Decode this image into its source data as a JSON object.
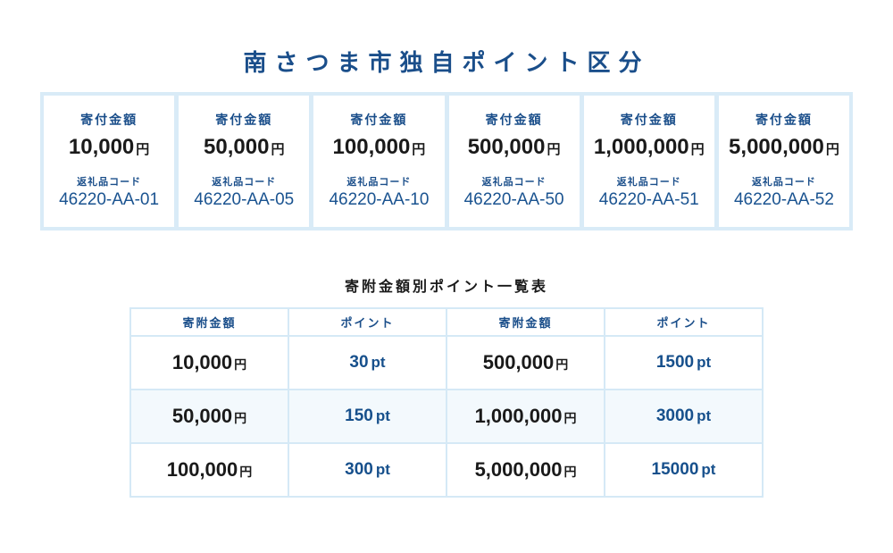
{
  "title": "南さつま市独自ポイント区分",
  "colors": {
    "accent_blue": "#1a4e8a",
    "code_blue": "#1a5390",
    "text_black": "#1a1a1a",
    "card_grid_blue": "#d9ebf7",
    "table_border_blue": "#d5e9f6",
    "row_alt_tint": "#f3f9fd"
  },
  "donation_cards": [
    {
      "amount_label": "寄付金額",
      "amount": "10,000",
      "currency": "円",
      "code_label": "返礼品コード",
      "code": "46220-AA-01"
    },
    {
      "amount_label": "寄付金額",
      "amount": "50,000",
      "currency": "円",
      "code_label": "返礼品コード",
      "code": "46220-AA-05"
    },
    {
      "amount_label": "寄付金額",
      "amount": "100,000",
      "currency": "円",
      "code_label": "返礼品コード",
      "code": "46220-AA-10"
    },
    {
      "amount_label": "寄付金額",
      "amount": "500,000",
      "currency": "円",
      "code_label": "返礼品コード",
      "code": "46220-AA-50"
    },
    {
      "amount_label": "寄付金額",
      "amount": "1,000,000",
      "currency": "円",
      "code_label": "返礼品コード",
      "code": "46220-AA-51"
    },
    {
      "amount_label": "寄付金額",
      "amount": "5,000,000",
      "currency": "円",
      "code_label": "返礼品コード",
      "code": "46220-AA-52"
    }
  ],
  "points_table": {
    "title": "寄附金額別ポイント一覧表",
    "headers": [
      "寄附金額",
      "ポイント",
      "寄附金額",
      "ポイント"
    ],
    "rows": [
      {
        "amount1": "10,000",
        "unit1": "円",
        "points1": "30",
        "ptunit1": "pt",
        "amount2": "500,000",
        "unit2": "円",
        "points2": "1500",
        "ptunit2": "pt"
      },
      {
        "amount1": "50,000",
        "unit1": "円",
        "points1": "150",
        "ptunit1": "pt",
        "amount2": "1,000,000",
        "unit2": "円",
        "points2": "3000",
        "ptunit2": "pt"
      },
      {
        "amount1": "100,000",
        "unit1": "円",
        "points1": "300",
        "ptunit1": "pt",
        "amount2": "5,000,000",
        "unit2": "円",
        "points2": "15000",
        "ptunit2": "pt"
      }
    ]
  }
}
